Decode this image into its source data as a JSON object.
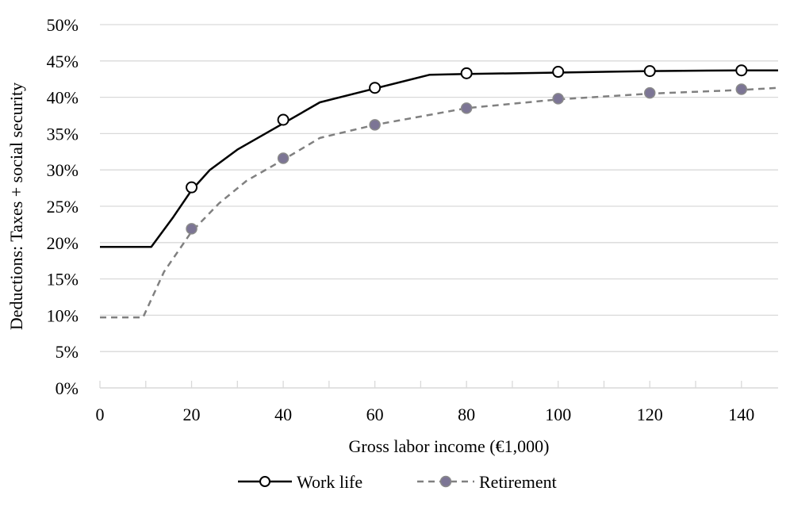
{
  "chart_data": {
    "type": "line",
    "title": "",
    "xlabel": "Gross labor income (€1,000)",
    "ylabel": "Deductions: Taxes + social security",
    "xlim": [
      0,
      148
    ],
    "ylim": [
      0,
      0.5
    ],
    "x_ticks": [
      0,
      20,
      40,
      60,
      80,
      100,
      120,
      140
    ],
    "x_tick_labels": [
      "0",
      "20",
      "40",
      "60",
      "80",
      "100",
      "120",
      "140"
    ],
    "y_ticks": [
      0,
      0.05,
      0.1,
      0.15,
      0.2,
      0.25,
      0.3,
      0.35,
      0.4,
      0.45,
      0.5
    ],
    "y_tick_labels": [
      "0%",
      "5%",
      "10%",
      "15%",
      "20%",
      "25%",
      "30%",
      "35%",
      "40%",
      "45%",
      "50%"
    ],
    "grid": "horizontal",
    "legend_position": "bottom",
    "series": [
      {
        "name": "Work life",
        "color": "#000000",
        "line_style": "solid",
        "marker": "open-circle",
        "line": [
          [
            0,
            0.194
          ],
          [
            11.2,
            0.194
          ],
          [
            16,
            0.235
          ],
          [
            20,
            0.272
          ],
          [
            24,
            0.3
          ],
          [
            30,
            0.328
          ],
          [
            40,
            0.364
          ],
          [
            48,
            0.393
          ],
          [
            60,
            0.412
          ],
          [
            72,
            0.431
          ],
          [
            80,
            0.432
          ],
          [
            100,
            0.434
          ],
          [
            120,
            0.436
          ],
          [
            140,
            0.437
          ],
          [
            148,
            0.437
          ]
        ],
        "markers": [
          [
            20,
            0.276
          ],
          [
            40,
            0.369
          ],
          [
            60,
            0.413
          ],
          [
            80,
            0.433
          ],
          [
            100,
            0.435
          ],
          [
            120,
            0.436
          ],
          [
            140,
            0.437
          ]
        ]
      },
      {
        "name": "Retirement",
        "color": "#808080",
        "marker_color": "#7c7595",
        "line_style": "dashed",
        "marker": "filled-circle",
        "line": [
          [
            0,
            0.097
          ],
          [
            9.4,
            0.097
          ],
          [
            14,
            0.16
          ],
          [
            20,
            0.215
          ],
          [
            26,
            0.254
          ],
          [
            32,
            0.285
          ],
          [
            40,
            0.314
          ],
          [
            48,
            0.344
          ],
          [
            60,
            0.362
          ],
          [
            80,
            0.385
          ],
          [
            100,
            0.397
          ],
          [
            120,
            0.405
          ],
          [
            140,
            0.41
          ],
          [
            148,
            0.413
          ]
        ],
        "markers": [
          [
            20,
            0.219
          ],
          [
            40,
            0.316
          ],
          [
            60,
            0.362
          ],
          [
            80,
            0.385
          ],
          [
            100,
            0.398
          ],
          [
            120,
            0.406
          ],
          [
            140,
            0.411
          ]
        ]
      }
    ]
  }
}
